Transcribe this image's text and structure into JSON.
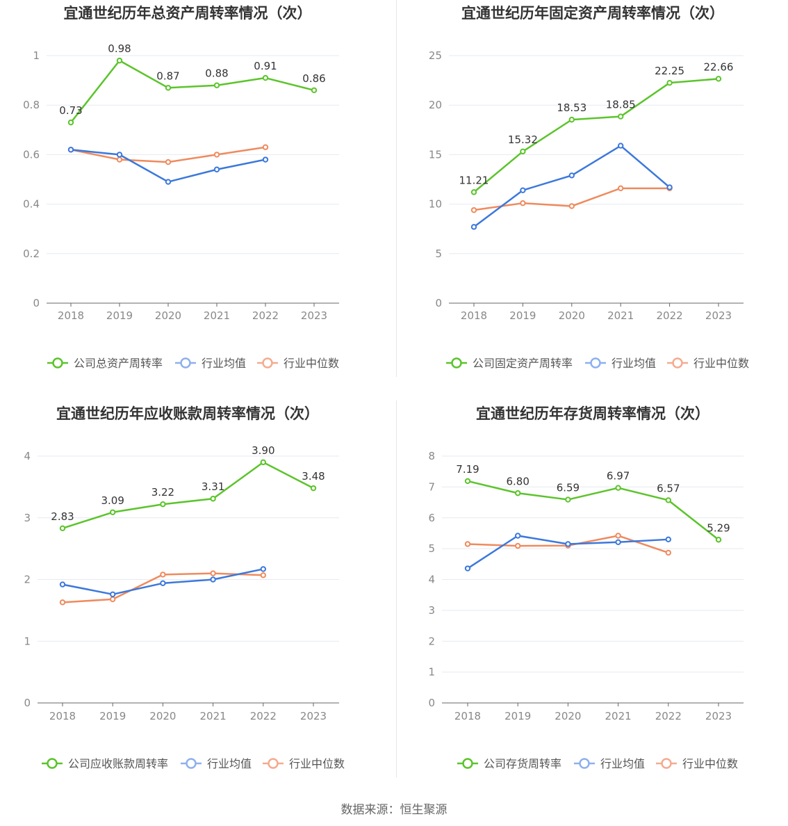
{
  "colors": {
    "company": "#5bc42b",
    "average": "#3b78dc",
    "median": "#ef8a5d",
    "legend_average": "#8eb0ee",
    "legend_median": "#f4ab8f",
    "grid": "#e6e9f0",
    "axis": "#666666",
    "tick_text": "#888888",
    "title": "#333333",
    "label": "#333333"
  },
  "source": "数据来源：恒生聚源",
  "chart_data": [
    {
      "type": "line",
      "title": "宜通世纪历年总资产周转率情况（次）",
      "categories": [
        "2018",
        "2019",
        "2020",
        "2021",
        "2022",
        "2023"
      ],
      "ylim": [
        0,
        1
      ],
      "yticks": [
        "0",
        "0.2",
        "0.4",
        "0.6",
        "0.8",
        "1"
      ],
      "yticks_values": [
        0,
        0.2,
        0.4,
        0.6,
        0.8,
        1
      ],
      "grid": true,
      "legend_position": "bottom",
      "series": [
        {
          "name": "公司总资产周转率",
          "key": "company",
          "values": [
            0.73,
            0.98,
            0.87,
            0.88,
            0.91,
            0.86
          ],
          "labels": [
            "0.73",
            "0.98",
            "0.87",
            "0.88",
            "0.91",
            "0.86"
          ]
        },
        {
          "name": "行业均值",
          "key": "average",
          "values": [
            0.62,
            0.6,
            0.49,
            0.54,
            0.58,
            null
          ]
        },
        {
          "name": "行业中位数",
          "key": "median",
          "values": [
            0.62,
            0.58,
            0.57,
            0.6,
            0.63,
            null
          ]
        }
      ]
    },
    {
      "type": "line",
      "title": "宜通世纪历年固定资产周转率情况（次）",
      "categories": [
        "2018",
        "2019",
        "2020",
        "2021",
        "2022",
        "2023"
      ],
      "ylim": [
        0,
        25
      ],
      "yticks": [
        "0",
        "5",
        "10",
        "15",
        "20",
        "25"
      ],
      "yticks_values": [
        0,
        5,
        10,
        15,
        20,
        25
      ],
      "grid": true,
      "legend_position": "bottom",
      "series": [
        {
          "name": "公司固定资产周转率",
          "key": "company",
          "values": [
            11.21,
            15.32,
            18.53,
            18.85,
            22.25,
            22.66
          ],
          "labels": [
            "11.21",
            "15.32",
            "18.53",
            "18.85",
            "22.25",
            "22.66"
          ]
        },
        {
          "name": "行业均值",
          "key": "average",
          "values": [
            7.7,
            11.4,
            12.9,
            15.9,
            11.7,
            null
          ]
        },
        {
          "name": "行业中位数",
          "key": "median",
          "values": [
            9.4,
            10.1,
            9.8,
            11.6,
            11.6,
            null
          ]
        }
      ]
    },
    {
      "type": "line",
      "title": "宜通世纪历年应收账款周转率情况（次）",
      "categories": [
        "2018",
        "2019",
        "2020",
        "2021",
        "2022",
        "2023"
      ],
      "ylim": [
        0,
        4
      ],
      "yticks": [
        "0",
        "1",
        "2",
        "3",
        "4"
      ],
      "yticks_values": [
        0,
        1,
        2,
        3,
        4
      ],
      "grid": true,
      "legend_position": "bottom",
      "series": [
        {
          "name": "公司应收账款周转率",
          "key": "company",
          "values": [
            2.83,
            3.09,
            3.22,
            3.31,
            3.9,
            3.48
          ],
          "labels": [
            "2.83",
            "3.09",
            "3.22",
            "3.31",
            "3.90",
            "3.48"
          ]
        },
        {
          "name": "行业均值",
          "key": "average",
          "values": [
            1.92,
            1.76,
            1.94,
            2.0,
            2.17,
            null
          ]
        },
        {
          "name": "行业中位数",
          "key": "median",
          "values": [
            1.63,
            1.68,
            2.08,
            2.1,
            2.07,
            null
          ]
        }
      ]
    },
    {
      "type": "line",
      "title": "宜通世纪历年存货周转率情况（次）",
      "categories": [
        "2018",
        "2019",
        "2020",
        "2021",
        "2022",
        "2023"
      ],
      "ylim": [
        0,
        8
      ],
      "yticks": [
        "0",
        "1",
        "2",
        "3",
        "4",
        "5",
        "6",
        "7",
        "8"
      ],
      "yticks_values": [
        0,
        1,
        2,
        3,
        4,
        5,
        6,
        7,
        8
      ],
      "grid": true,
      "legend_position": "bottom",
      "series": [
        {
          "name": "公司存货周转率",
          "key": "company",
          "values": [
            7.19,
            6.8,
            6.59,
            6.97,
            6.57,
            5.29
          ],
          "labels": [
            "7.19",
            "6.80",
            "6.59",
            "6.97",
            "6.57",
            "5.29"
          ]
        },
        {
          "name": "行业均值",
          "key": "average",
          "values": [
            4.36,
            5.42,
            5.15,
            5.21,
            5.3,
            null
          ]
        },
        {
          "name": "行业中位数",
          "key": "median",
          "values": [
            5.15,
            5.09,
            5.1,
            5.42,
            4.87,
            null
          ]
        }
      ]
    }
  ]
}
